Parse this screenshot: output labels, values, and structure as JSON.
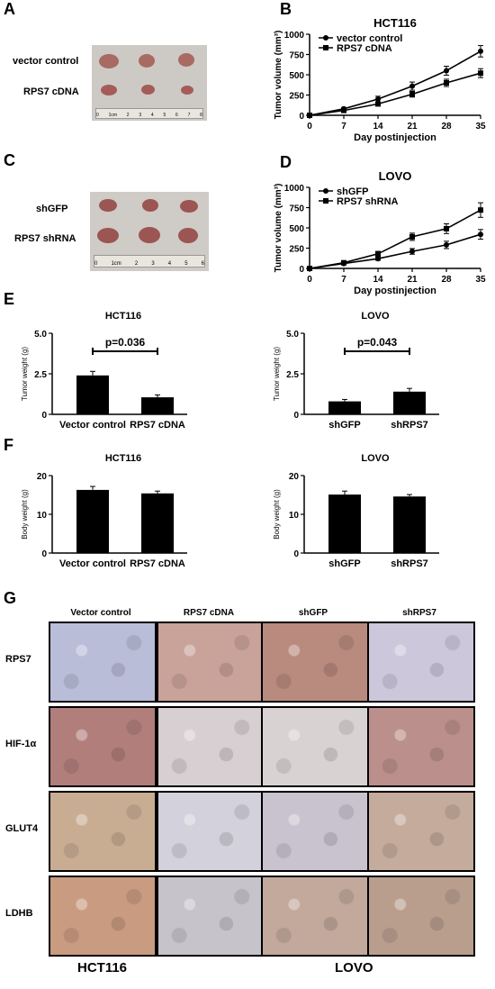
{
  "panels": {
    "A": "A",
    "B": "B",
    "C": "C",
    "D": "D",
    "E": "E",
    "F": "F",
    "G": "G"
  },
  "photos": {
    "A": {
      "labels": [
        "vector control",
        "RPS7 cDNA"
      ],
      "ruler_ticks": [
        "0",
        "1cm",
        "2",
        "3",
        "4",
        "5",
        "6",
        "7",
        "8"
      ],
      "bg": "#c9c6c1",
      "tumor": "#a86a62"
    },
    "C": {
      "labels": [
        "shGFP",
        "RPS7 shRNA"
      ],
      "ruler_ticks": [
        "0",
        "1cm",
        "2",
        "3",
        "4",
        "5",
        "6"
      ],
      "bg": "#cfcbc6",
      "tumor": "#9b5552"
    }
  },
  "chart_data": [
    {
      "id": "B",
      "type": "line",
      "title": "HCT116",
      "xlabel": "Day postinjection",
      "ylabel": "Tumor volume (mm³)",
      "x": [
        0,
        7,
        14,
        21,
        28,
        35
      ],
      "xlim": [
        0,
        35
      ],
      "ylim": [
        0,
        1000
      ],
      "xticks": [
        "0",
        "7",
        "14",
        "21",
        "28",
        "35"
      ],
      "yticks": [
        "0",
        "250",
        "500",
        "750",
        "1000"
      ],
      "series": [
        {
          "name": "vector control",
          "marker": "circle",
          "values": [
            0,
            80,
            200,
            360,
            550,
            790
          ],
          "err": [
            0,
            15,
            35,
            50,
            55,
            70
          ]
        },
        {
          "name": "RPS7 cDNA",
          "marker": "square",
          "values": [
            0,
            60,
            140,
            260,
            400,
            520
          ],
          "err": [
            0,
            10,
            20,
            35,
            45,
            55
          ]
        }
      ]
    },
    {
      "id": "D",
      "type": "line",
      "title": "LOVO",
      "xlabel": "Day postinjection",
      "ylabel": "Tumor volume (mm³)",
      "x": [
        0,
        7,
        14,
        21,
        28,
        35
      ],
      "xlim": [
        0,
        35
      ],
      "ylim": [
        0,
        1000
      ],
      "xticks": [
        "0",
        "7",
        "14",
        "21",
        "28",
        "35"
      ],
      "yticks": [
        "0",
        "250",
        "500",
        "750",
        "1000"
      ],
      "series": [
        {
          "name": "shGFP",
          "marker": "circle",
          "values": [
            0,
            60,
            120,
            210,
            290,
            420
          ],
          "err": [
            0,
            10,
            20,
            35,
            45,
            60
          ]
        },
        {
          "name": "RPS7 shRNA",
          "marker": "square",
          "values": [
            0,
            70,
            180,
            390,
            490,
            720
          ],
          "err": [
            0,
            10,
            30,
            45,
            60,
            90
          ]
        }
      ]
    },
    {
      "id": "E1",
      "type": "bar",
      "title": "HCT116",
      "ylabel": "Tumor weight (g)",
      "categories": [
        "Vector control",
        "RPS7 cDNA"
      ],
      "values": [
        2.4,
        1.05
      ],
      "err": [
        0.25,
        0.15
      ],
      "ylim": [
        0,
        5
      ],
      "yticks": [
        "0",
        "2.5",
        "5.0"
      ],
      "annotation": "p=0.036"
    },
    {
      "id": "E2",
      "type": "bar",
      "title": "LOVO",
      "ylabel": "Tumor weight (g)",
      "categories": [
        "shGFP",
        "shRPS7"
      ],
      "values": [
        0.8,
        1.4
      ],
      "err": [
        0.12,
        0.2
      ],
      "ylim": [
        0,
        5
      ],
      "yticks": [
        "0",
        "2.5",
        "5.0"
      ],
      "annotation": "p=0.043"
    },
    {
      "id": "F1",
      "type": "bar",
      "title": "HCT116",
      "ylabel": "Body weight (g)",
      "categories": [
        "Vector control",
        "RPS7 cDNA"
      ],
      "values": [
        16.3,
        15.4
      ],
      "err": [
        0.9,
        0.6
      ],
      "ylim": [
        0,
        20
      ],
      "yticks": [
        "0",
        "10",
        "20"
      ]
    },
    {
      "id": "F2",
      "type": "bar",
      "title": "LOVO",
      "ylabel": "Body weight (g)",
      "categories": [
        "shGFP",
        "shRPS7"
      ],
      "values": [
        15.1,
        14.6
      ],
      "err": [
        0.9,
        0.5
      ],
      "ylim": [
        0,
        20
      ],
      "yticks": [
        "0",
        "10",
        "20"
      ]
    }
  ],
  "ihc": {
    "columns": [
      "Vector control",
      "RPS7 cDNA",
      "shGFP",
      "shRPS7"
    ],
    "rows": [
      "RPS7",
      "HIF-1α",
      "GLUT4",
      "LDHB"
    ],
    "footer": [
      "HCT116",
      "LOVO"
    ],
    "tiles": [
      [
        "#b9bdd8",
        "#c9a29a",
        "#b98a7e",
        "#cdc7dc"
      ],
      [
        "#b17e7c",
        "#d7cfd2",
        "#d9d2d3",
        "#bb8f8b"
      ],
      [
        "#c9ad93",
        "#d2d1dc",
        "#c8c3cf",
        "#c5ab9b"
      ],
      [
        "#c99b80",
        "#c7c3cb",
        "#c2a99c",
        "#b99e8e"
      ]
    ]
  }
}
